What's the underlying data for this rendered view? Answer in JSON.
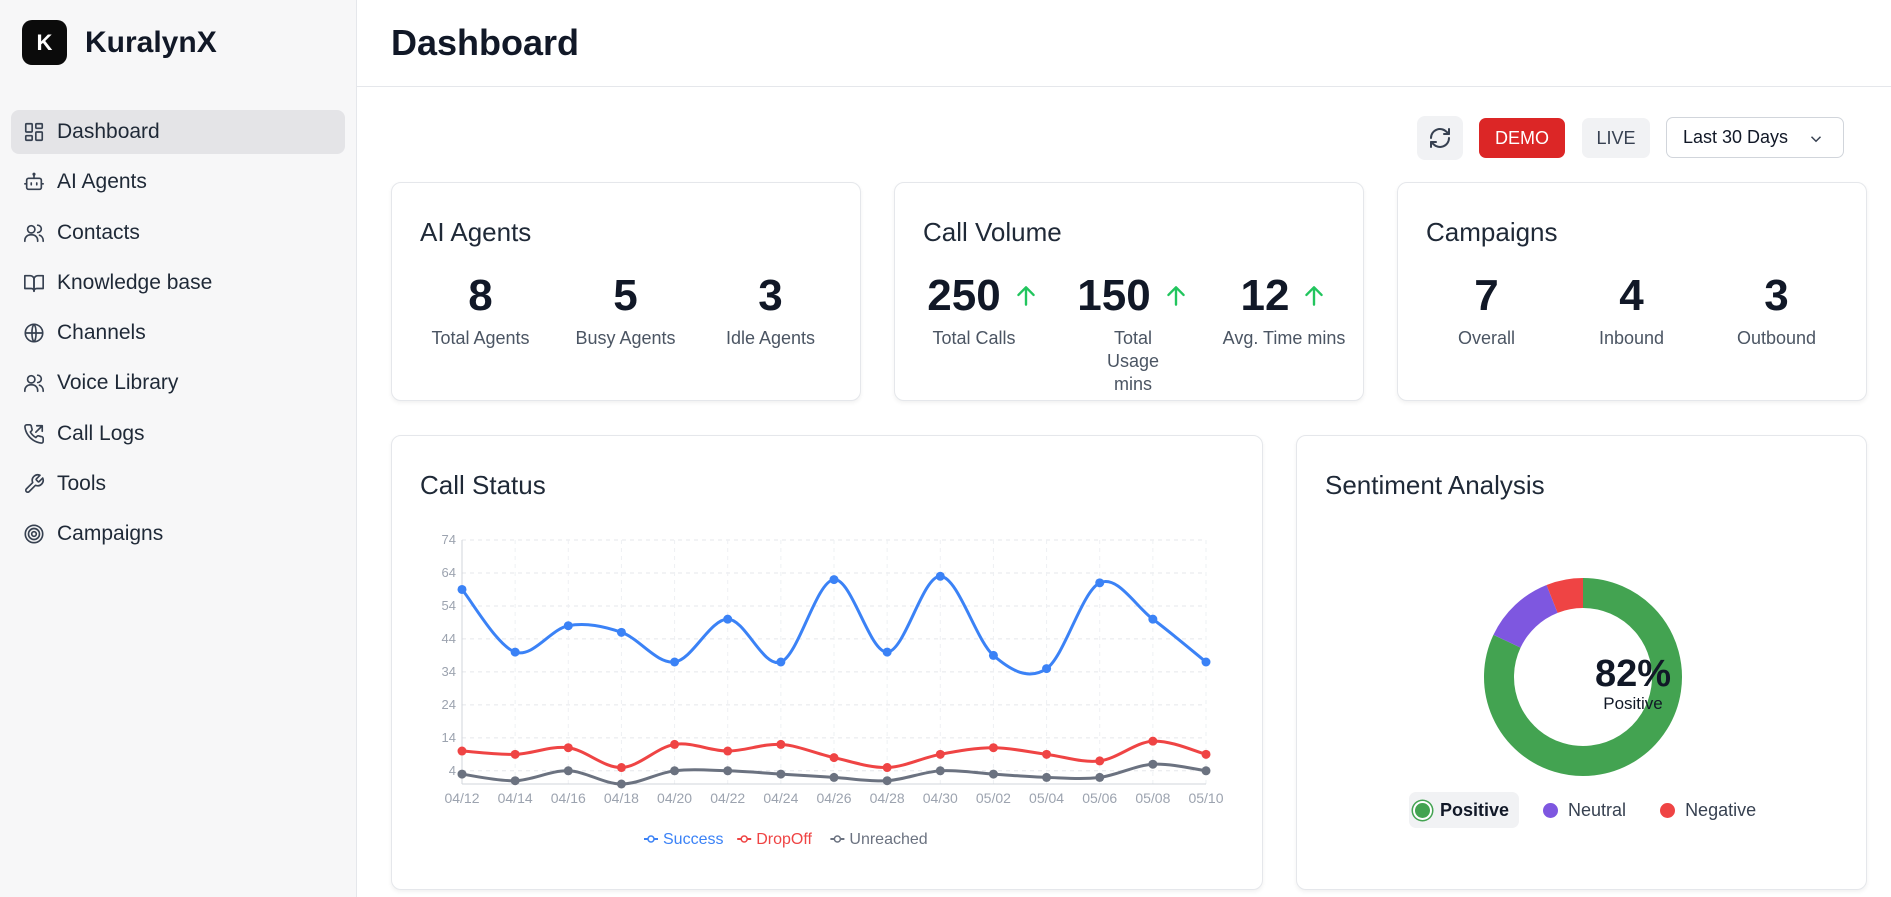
{
  "brand": {
    "logo_letter": "K",
    "name": "KuralynX"
  },
  "nav": [
    {
      "label": "Dashboard",
      "icon": "dashboard-icon",
      "active": true
    },
    {
      "label": "AI Agents",
      "icon": "bot-icon"
    },
    {
      "label": "Contacts",
      "icon": "users-icon"
    },
    {
      "label": "Knowledge base",
      "icon": "book-icon"
    },
    {
      "label": "Channels",
      "icon": "globe-icon"
    },
    {
      "label": "Voice Library",
      "icon": "users-icon"
    },
    {
      "label": "Call Logs",
      "icon": "phone-icon"
    },
    {
      "label": "Tools",
      "icon": "wrench-icon"
    },
    {
      "label": "Campaigns",
      "icon": "target-icon"
    }
  ],
  "header": {
    "title": "Dashboard"
  },
  "controls": {
    "refresh_icon": "refresh-icon",
    "demo_label": "DEMO",
    "live_label": "LIVE",
    "range_label": "Last 30 Days"
  },
  "cards": {
    "ai_agents": {
      "title": "AI Agents",
      "stats": [
        {
          "value": "8",
          "label": "Total Agents"
        },
        {
          "value": "5",
          "label": "Busy Agents"
        },
        {
          "value": "3",
          "label": "Idle Agents"
        }
      ]
    },
    "call_volume": {
      "title": "Call Volume",
      "stats": [
        {
          "value": "250",
          "label": "Total Calls"
        },
        {
          "value": "150",
          "label": "Total Usage mins"
        },
        {
          "value": "12",
          "label": "Avg. Time mins"
        }
      ]
    },
    "campaigns": {
      "title": "Campaigns",
      "stats": [
        {
          "value": "7",
          "label": "Overall"
        },
        {
          "value": "4",
          "label": "Inbound"
        },
        {
          "value": "3",
          "label": "Outbound"
        }
      ]
    }
  },
  "call_status": {
    "title": "Call Status"
  },
  "sentiment": {
    "title": "Sentiment Analysis",
    "center_value": "82%",
    "center_label": "Positive",
    "legend": [
      {
        "label": "Positive",
        "color": "#43a351",
        "active": true
      },
      {
        "label": "Neutral",
        "color": "#7e57e0"
      },
      {
        "label": "Negative",
        "color": "#ef4444"
      }
    ]
  },
  "chart_data": [
    {
      "type": "line",
      "title": "Call Status",
      "x": [
        "04/12",
        "04/14",
        "04/16",
        "04/18",
        "04/20",
        "04/22",
        "04/24",
        "04/26",
        "04/28",
        "04/30",
        "05/02",
        "05/04",
        "05/06",
        "05/08",
        "05/10"
      ],
      "yticks": [
        4,
        14,
        24,
        34,
        44,
        54,
        64,
        74
      ],
      "ylim": [
        0,
        74
      ],
      "grid": true,
      "legend_position": "bottom",
      "series": [
        {
          "name": "Success",
          "color": "#3b82f6",
          "values": [
            59,
            40,
            48,
            46,
            37,
            50,
            37,
            62,
            40,
            63,
            39,
            35,
            61,
            50,
            37
          ]
        },
        {
          "name": "DropOff",
          "color": "#ef4444",
          "values": [
            10,
            9,
            11,
            5,
            12,
            10,
            12,
            8,
            5,
            9,
            11,
            9,
            7,
            13,
            9
          ]
        },
        {
          "name": "Unreached",
          "color": "#6b7280",
          "values": [
            3,
            1,
            4,
            0,
            4,
            4,
            3,
            2,
            1,
            4,
            3,
            2,
            2,
            6,
            4
          ]
        }
      ]
    },
    {
      "type": "pie",
      "title": "Sentiment Analysis",
      "categories": [
        "Positive",
        "Neutral",
        "Negative"
      ],
      "values": [
        82,
        12,
        6
      ]
    }
  ]
}
